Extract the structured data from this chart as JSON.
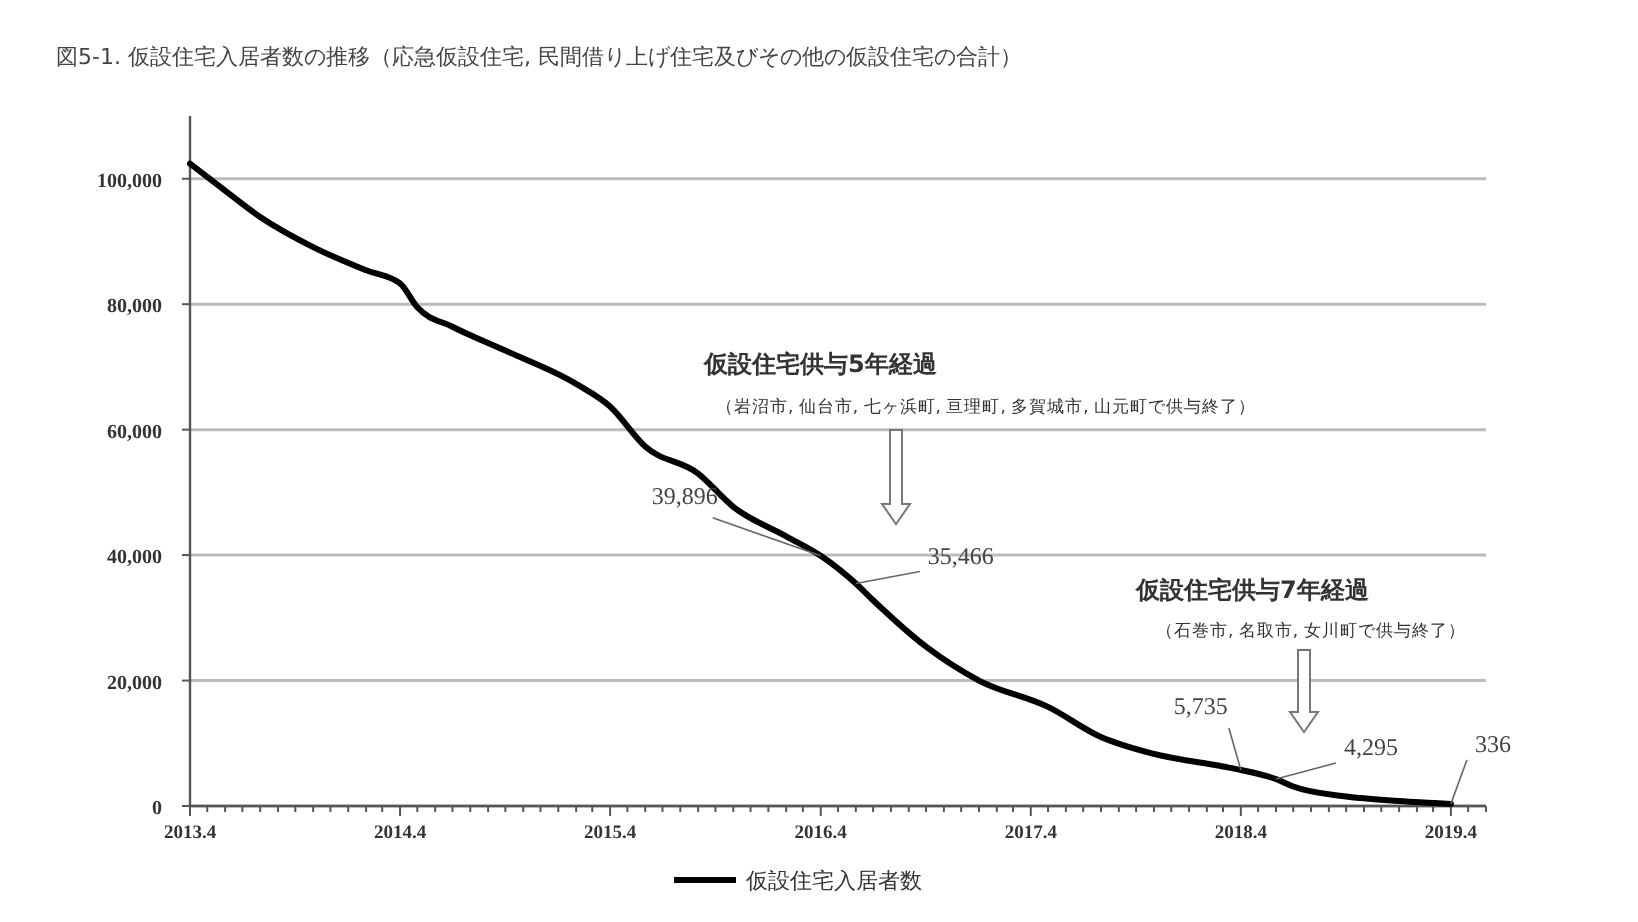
{
  "chart_data": {
    "type": "line",
    "title": "図5-1. 仮設住宅入居者数の推移（応急仮設住宅, 民間借り上げ住宅及びその他の仮設住宅の合計）",
    "x": [
      "2013-04",
      "2013-06",
      "2013-08",
      "2013-11",
      "2014-02",
      "2014-04",
      "2014-05",
      "2014-07",
      "2014-10",
      "2015-02",
      "2015-04",
      "2015-06",
      "2015-09",
      "2015-11",
      "2016-02",
      "2016-04",
      "2016-06",
      "2016-07",
      "2016-10",
      "2017-01",
      "2017-05",
      "2017-08",
      "2017-11",
      "2018-03",
      "2018-04",
      "2018-06",
      "2018-07",
      "2018-10",
      "2019-01",
      "2019-04"
    ],
    "series": [
      {
        "name": "仮設住宅入居者数",
        "color": "#000000",
        "values": [
          102400,
          98100,
          93900,
          89100,
          85400,
          83300,
          79500,
          76400,
          72600,
          67300,
          63700,
          57300,
          53000,
          47700,
          43000,
          39896,
          35466,
          32800,
          25400,
          20000,
          15800,
          11000,
          8300,
          6300,
          5735,
          4295,
          3100,
          1500,
          800,
          336
        ],
        "value_labels": [
          null,
          null,
          null,
          null,
          null,
          null,
          null,
          null,
          null,
          null,
          null,
          null,
          null,
          null,
          null,
          "39,896",
          "35,466",
          null,
          null,
          null,
          null,
          null,
          null,
          null,
          "5,735",
          "4,295",
          null,
          null,
          null,
          "336"
        ]
      }
    ],
    "xlim": [
      "2013-04",
      "2019-06"
    ],
    "xticks": [
      {
        "value": "2013-04",
        "label": "2013.4"
      },
      {
        "value": "2013-05",
        "label": null
      },
      {
        "value": "2013-06",
        "label": null
      },
      {
        "value": "2013-07",
        "label": null
      },
      {
        "value": "2013-08",
        "label": null
      },
      {
        "value": "2013-09",
        "label": null
      },
      {
        "value": "2013-10",
        "label": null
      },
      {
        "value": "2013-11",
        "label": null
      },
      {
        "value": "2013-12",
        "label": null
      },
      {
        "value": "2014-01",
        "label": null
      },
      {
        "value": "2014-02",
        "label": null
      },
      {
        "value": "2014-03",
        "label": null
      },
      {
        "value": "2014-04",
        "label": "2014.4"
      },
      {
        "value": "2014-05",
        "label": null
      },
      {
        "value": "2014-06",
        "label": null
      },
      {
        "value": "2014-07",
        "label": null
      },
      {
        "value": "2014-08",
        "label": null
      },
      {
        "value": "2014-09",
        "label": null
      },
      {
        "value": "2014-10",
        "label": null
      },
      {
        "value": "2014-11",
        "label": null
      },
      {
        "value": "2014-12",
        "label": null
      },
      {
        "value": "2015-01",
        "label": null
      },
      {
        "value": "2015-02",
        "label": null
      },
      {
        "value": "2015-03",
        "label": null
      },
      {
        "value": "2015-04",
        "label": "2015.4"
      },
      {
        "value": "2015-05",
        "label": null
      },
      {
        "value": "2015-06",
        "label": null
      },
      {
        "value": "2015-07",
        "label": null
      },
      {
        "value": "2015-08",
        "label": null
      },
      {
        "value": "2015-09",
        "label": null
      },
      {
        "value": "2015-10",
        "label": null
      },
      {
        "value": "2015-11",
        "label": null
      },
      {
        "value": "2015-12",
        "label": null
      },
      {
        "value": "2016-01",
        "label": null
      },
      {
        "value": "2016-02",
        "label": null
      },
      {
        "value": "2016-03",
        "label": null
      },
      {
        "value": "2016-04",
        "label": "2016.4"
      },
      {
        "value": "2016-05",
        "label": null
      },
      {
        "value": "2016-06",
        "label": null
      },
      {
        "value": "2016-07",
        "label": null
      },
      {
        "value": "2016-08",
        "label": null
      },
      {
        "value": "2016-09",
        "label": null
      },
      {
        "value": "2016-10",
        "label": null
      },
      {
        "value": "2016-11",
        "label": null
      },
      {
        "value": "2016-12",
        "label": null
      },
      {
        "value": "2017-01",
        "label": null
      },
      {
        "value": "2017-02",
        "label": null
      },
      {
        "value": "2017-03",
        "label": null
      },
      {
        "value": "2017-04",
        "label": "2017.4"
      },
      {
        "value": "2017-05",
        "label": null
      },
      {
        "value": "2017-06",
        "label": null
      },
      {
        "value": "2017-07",
        "label": null
      },
      {
        "value": "2017-08",
        "label": null
      },
      {
        "value": "2017-09",
        "label": null
      },
      {
        "value": "2017-10",
        "label": null
      },
      {
        "value": "2017-11",
        "label": null
      },
      {
        "value": "2017-12",
        "label": null
      },
      {
        "value": "2018-01",
        "label": null
      },
      {
        "value": "2018-02",
        "label": null
      },
      {
        "value": "2018-03",
        "label": null
      },
      {
        "value": "2018-04",
        "label": "2018.4"
      },
      {
        "value": "2018-05",
        "label": null
      },
      {
        "value": "2018-06",
        "label": null
      },
      {
        "value": "2018-07",
        "label": null
      },
      {
        "value": "2018-08",
        "label": null
      },
      {
        "value": "2018-09",
        "label": null
      },
      {
        "value": "2018-10",
        "label": null
      },
      {
        "value": "2018-11",
        "label": null
      },
      {
        "value": "2018-12",
        "label": null
      },
      {
        "value": "2019-01",
        "label": null
      },
      {
        "value": "2019-02",
        "label": null
      },
      {
        "value": "2019-03",
        "label": null
      },
      {
        "value": "2019-04",
        "label": "2019.4"
      },
      {
        "value": "2019-05",
        "label": null
      },
      {
        "value": "2019-06",
        "label": null
      }
    ],
    "ylim": [
      0,
      110000
    ],
    "yticks": [
      {
        "value": 0,
        "label": "0"
      },
      {
        "value": 20000,
        "label": "20,000"
      },
      {
        "value": 40000,
        "label": "40,000"
      },
      {
        "value": 60000,
        "label": "60,000"
      },
      {
        "value": 80000,
        "label": "80,000"
      },
      {
        "value": 100000,
        "label": "100,000"
      }
    ],
    "grid": "y",
    "legend": "bottom",
    "marker": "none",
    "line_style": "solid",
    "annotations": [
      "仮設住宅供与5年経過",
      "（岩沼市, 仙台市, 七ヶ浜町, 亘理町, 多賀城市, 山元町で供与終了）",
      "仮設住宅供与7年経過",
      "（石巻市, 名取市, 女川町で供与終了）"
    ]
  }
}
